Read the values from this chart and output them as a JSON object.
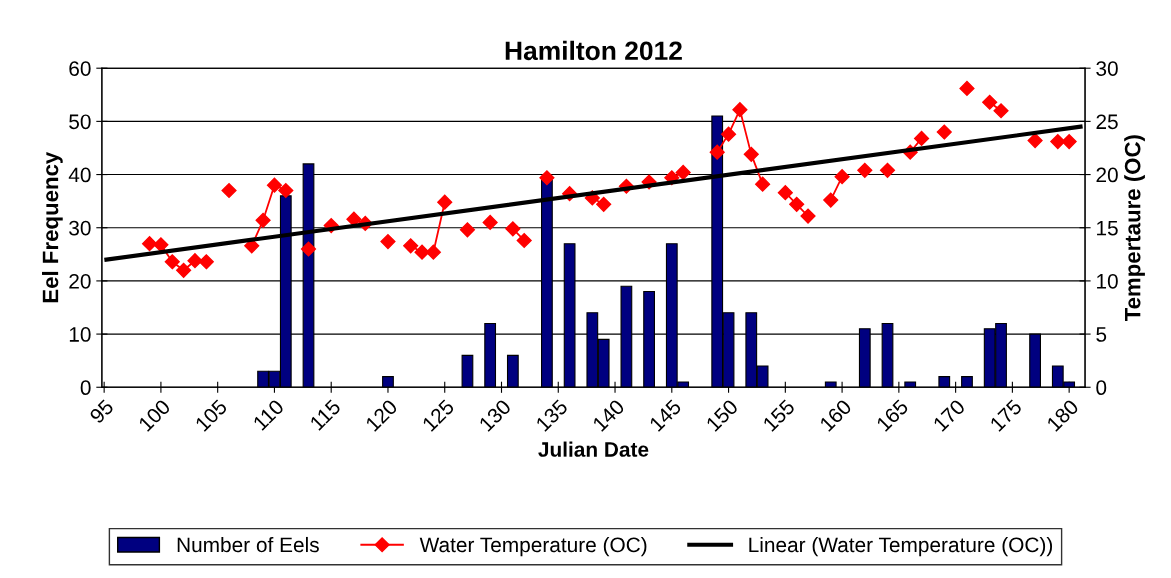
{
  "chart_data": {
    "type": "bar",
    "title": "Hamilton 2012",
    "xlabel": "Julian Date",
    "ylabel": "Eel Frequency",
    "y2label": "Tempertaure (OC)",
    "xlim": [
      94.8,
      181.4
    ],
    "xticks": [
      95,
      100,
      105,
      110,
      115,
      120,
      125,
      130,
      135,
      140,
      145,
      150,
      155,
      160,
      165,
      170,
      175,
      180
    ],
    "ylim": [
      0,
      60
    ],
    "yticks": [
      0,
      10,
      20,
      30,
      40,
      50,
      60
    ],
    "y2lim": [
      0,
      30
    ],
    "y2ticks": [
      0,
      5,
      10,
      15,
      20,
      25,
      30
    ],
    "grid": "y",
    "legend": "bottom",
    "series": [
      {
        "name": "Number of Eels",
        "color": "#000080",
        "x": [
          109,
          110,
          111,
          113,
          120,
          127,
          129,
          131,
          134,
          136,
          138,
          139,
          141,
          143,
          145,
          146,
          149,
          150,
          152,
          153,
          159,
          162,
          164,
          166,
          169,
          171,
          173,
          174,
          177,
          179,
          180
        ],
        "values": [
          3,
          3,
          36,
          42,
          2,
          6,
          12,
          6,
          39,
          27,
          14,
          9,
          19,
          18,
          27,
          1,
          51,
          14,
          14,
          4,
          1,
          11,
          12,
          1,
          2,
          2,
          11,
          12,
          10,
          4,
          1
        ]
      },
      {
        "name": "Water Temperature (OC)",
        "type": "line",
        "axis": "y2",
        "color": "#ff0000",
        "marker": "diamond",
        "line_style": "solid",
        "x": [
          99,
          100,
          101,
          102,
          103,
          104,
          105,
          106,
          107,
          108,
          109,
          110,
          111,
          112,
          113,
          114,
          115,
          116,
          117,
          118,
          119,
          120,
          121,
          122,
          123,
          124,
          125,
          126,
          127,
          128,
          129,
          130,
          131,
          132,
          133,
          134,
          135,
          136,
          137,
          138,
          139,
          140,
          141,
          142,
          143,
          144,
          145,
          146,
          147,
          148,
          149,
          150,
          151,
          152,
          153,
          154,
          155,
          156,
          157,
          158,
          159,
          160,
          161,
          162,
          163,
          164,
          165,
          166,
          167,
          168,
          169,
          170,
          171,
          172,
          173,
          174,
          175,
          176,
          177,
          178,
          179,
          180
        ],
        "values": [
          13.5,
          13.4,
          11.8,
          11.0,
          11.9,
          11.8,
          null,
          18.5,
          null,
          13.3,
          15.7,
          19.0,
          18.5,
          null,
          13.0,
          null,
          15.2,
          null,
          15.8,
          15.4,
          null,
          13.7,
          null,
          13.3,
          12.7,
          12.7,
          17.4,
          null,
          14.8,
          null,
          15.5,
          null,
          14.9,
          13.8,
          null,
          19.7,
          null,
          18.2,
          null,
          17.8,
          17.2,
          null,
          18.9,
          null,
          19.3,
          null,
          19.7,
          20.2,
          null,
          null,
          22.1,
          23.8,
          26.1,
          21.9,
          19.1,
          null,
          18.3,
          17.2,
          16.1,
          null,
          17.6,
          19.8,
          null,
          20.4,
          null,
          20.4,
          null,
          22.1,
          23.4,
          null,
          24.0,
          null,
          28.1,
          null,
          26.8,
          26.0,
          null,
          null,
          23.2,
          null,
          23.1,
          23.1
        ]
      },
      {
        "name": "Linear (Water Temperature (OC))",
        "type": "line",
        "axis": "y2",
        "color": "#000000",
        "marker": "none",
        "line_style": "solid",
        "x": [
          95.2,
          181
        ],
        "values": [
          12.0,
          24.5
        ]
      }
    ]
  }
}
